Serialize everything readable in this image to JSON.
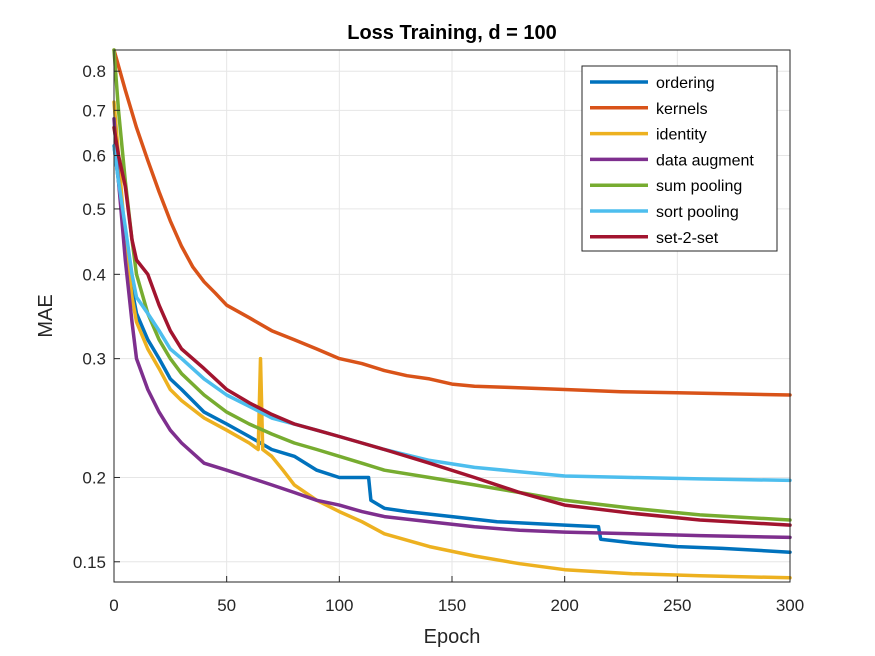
{
  "chart_data": {
    "type": "line",
    "title": "Loss Training, d = 100",
    "xlabel": "Epoch",
    "ylabel": "MAE",
    "xlim": [
      0,
      300
    ],
    "ylim": [
      0.14,
      0.86
    ],
    "yscale": "log",
    "grid": true,
    "legend_position": "top-right",
    "xticks": [
      0,
      50,
      100,
      150,
      200,
      250,
      300
    ],
    "xtick_labels": [
      "0",
      "50",
      "100",
      "150",
      "200",
      "250",
      "300"
    ],
    "yticks": [
      0.15,
      0.2,
      0.3,
      0.4,
      0.5,
      0.6,
      0.7,
      0.8
    ],
    "ytick_labels": [
      "0.15",
      "0.2",
      "0.3",
      "0.4",
      "0.5",
      "0.6",
      "0.7",
      "0.8"
    ],
    "series": [
      {
        "name": "ordering",
        "color": "#0072BD",
        "x": [
          0,
          2,
          5,
          8,
          10,
          15,
          20,
          25,
          30,
          40,
          50,
          60,
          70,
          80,
          90,
          100,
          110,
          113,
          114,
          120,
          130,
          150,
          170,
          200,
          215,
          216,
          230,
          250,
          270,
          300
        ],
        "y": [
          0.62,
          0.55,
          0.45,
          0.38,
          0.35,
          0.32,
          0.3,
          0.28,
          0.27,
          0.25,
          0.24,
          0.23,
          0.22,
          0.215,
          0.205,
          0.2,
          0.2,
          0.2,
          0.185,
          0.18,
          0.178,
          0.175,
          0.172,
          0.17,
          0.169,
          0.162,
          0.16,
          0.158,
          0.157,
          0.155
        ]
      },
      {
        "name": "kernels",
        "color": "#D95319",
        "x": [
          0,
          5,
          10,
          15,
          20,
          25,
          30,
          35,
          40,
          45,
          50,
          60,
          70,
          80,
          90,
          100,
          110,
          120,
          130,
          140,
          150,
          160,
          175,
          200,
          225,
          250,
          275,
          300
        ],
        "y": [
          0.86,
          0.75,
          0.66,
          0.59,
          0.53,
          0.48,
          0.44,
          0.41,
          0.39,
          0.375,
          0.36,
          0.345,
          0.33,
          0.32,
          0.31,
          0.3,
          0.295,
          0.288,
          0.283,
          0.28,
          0.275,
          0.273,
          0.272,
          0.27,
          0.268,
          0.267,
          0.266,
          0.265
        ]
      },
      {
        "name": "identity",
        "color": "#EDB120",
        "x": [
          0,
          2,
          5,
          8,
          10,
          15,
          20,
          25,
          30,
          40,
          50,
          60,
          64,
          65,
          66,
          70,
          75,
          80,
          90,
          100,
          110,
          120,
          140,
          160,
          180,
          200,
          230,
          260,
          300
        ],
        "y": [
          0.72,
          0.6,
          0.45,
          0.37,
          0.34,
          0.31,
          0.29,
          0.27,
          0.26,
          0.245,
          0.235,
          0.225,
          0.22,
          0.3,
          0.22,
          0.215,
          0.205,
          0.195,
          0.185,
          0.178,
          0.172,
          0.165,
          0.158,
          0.153,
          0.149,
          0.146,
          0.144,
          0.143,
          0.142
        ]
      },
      {
        "name": "data augment",
        "color": "#7E2F8E",
        "x": [
          0,
          2,
          5,
          8,
          10,
          15,
          20,
          25,
          30,
          40,
          50,
          60,
          70,
          80,
          90,
          100,
          110,
          120,
          140,
          160,
          180,
          200,
          230,
          260,
          300
        ],
        "y": [
          0.68,
          0.55,
          0.42,
          0.34,
          0.3,
          0.27,
          0.25,
          0.235,
          0.225,
          0.21,
          0.205,
          0.2,
          0.195,
          0.19,
          0.185,
          0.182,
          0.178,
          0.175,
          0.172,
          0.169,
          0.167,
          0.166,
          0.165,
          0.164,
          0.163
        ]
      },
      {
        "name": "sum pooling",
        "color": "#77AC30",
        "x": [
          0,
          2,
          5,
          8,
          10,
          15,
          20,
          25,
          30,
          40,
          50,
          60,
          70,
          80,
          90,
          100,
          110,
          120,
          140,
          160,
          180,
          200,
          230,
          260,
          300
        ],
        "y": [
          0.86,
          0.7,
          0.55,
          0.45,
          0.4,
          0.35,
          0.32,
          0.3,
          0.285,
          0.265,
          0.25,
          0.24,
          0.232,
          0.225,
          0.22,
          0.215,
          0.21,
          0.205,
          0.2,
          0.195,
          0.19,
          0.185,
          0.18,
          0.176,
          0.173
        ]
      },
      {
        "name": "sort pooling",
        "color": "#4DBEEE",
        "x": [
          0,
          2,
          5,
          8,
          10,
          15,
          20,
          25,
          30,
          40,
          50,
          60,
          70,
          80,
          90,
          100,
          110,
          120,
          140,
          160,
          180,
          200,
          230,
          260,
          300
        ],
        "y": [
          0.62,
          0.55,
          0.47,
          0.4,
          0.37,
          0.35,
          0.33,
          0.31,
          0.3,
          0.28,
          0.265,
          0.255,
          0.245,
          0.24,
          0.235,
          0.23,
          0.225,
          0.22,
          0.212,
          0.207,
          0.204,
          0.201,
          0.2,
          0.199,
          0.198
        ]
      },
      {
        "name": "set-2-set",
        "color": "#A2142F",
        "x": [
          0,
          2,
          5,
          8,
          10,
          15,
          20,
          25,
          30,
          40,
          50,
          60,
          70,
          80,
          90,
          100,
          110,
          120,
          140,
          160,
          180,
          200,
          230,
          260,
          300
        ],
        "y": [
          0.66,
          0.6,
          0.54,
          0.45,
          0.42,
          0.4,
          0.36,
          0.33,
          0.31,
          0.29,
          0.27,
          0.258,
          0.248,
          0.24,
          0.235,
          0.23,
          0.225,
          0.22,
          0.21,
          0.2,
          0.19,
          0.182,
          0.177,
          0.173,
          0.17
        ]
      }
    ]
  }
}
